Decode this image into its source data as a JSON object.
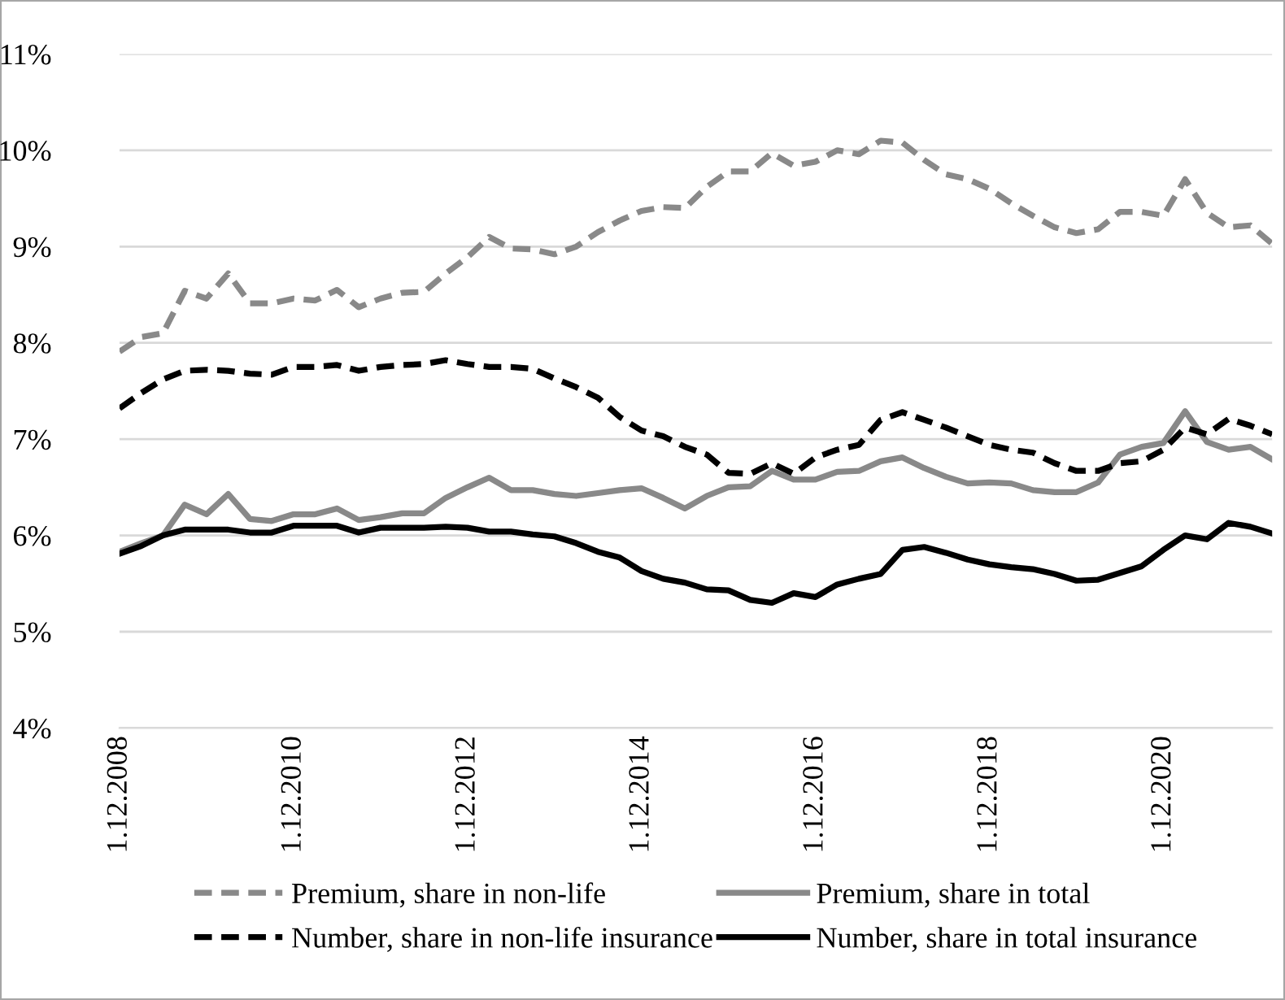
{
  "chart_data": {
    "type": "line",
    "categories": [
      "1.12.2008",
      null,
      null,
      null,
      null,
      null,
      null,
      null,
      "1.12.2010",
      null,
      null,
      null,
      null,
      null,
      null,
      null,
      "1.12.2012",
      null,
      null,
      null,
      null,
      null,
      null,
      null,
      "1.12.2014",
      null,
      null,
      null,
      null,
      null,
      null,
      null,
      "1.12.2016",
      null,
      null,
      null,
      null,
      null,
      null,
      null,
      "1.12.2018",
      null,
      null,
      null,
      null,
      null,
      null,
      null,
      "1.12.2020",
      null,
      null,
      null,
      null,
      null
    ],
    "series": [
      {
        "name": "Premium, share in non-life",
        "color": "#898989",
        "line_style": "dashed",
        "values": [
          7.91,
          8.06,
          8.1,
          8.54,
          8.46,
          8.72,
          8.41,
          8.41,
          8.46,
          8.44,
          8.55,
          8.37,
          8.46,
          8.52,
          8.53,
          8.72,
          8.89,
          9.1,
          8.98,
          8.97,
          8.92,
          9.0,
          9.15,
          9.27,
          9.37,
          9.41,
          9.4,
          9.62,
          9.78,
          9.78,
          9.97,
          9.84,
          9.88,
          10.0,
          9.96,
          10.1,
          10.08,
          9.9,
          9.75,
          9.7,
          9.6,
          9.45,
          9.32,
          9.2,
          9.14,
          9.18,
          9.36,
          9.36,
          9.32,
          9.7,
          9.35,
          9.2,
          9.22,
          9.03
        ]
      },
      {
        "name": "Premium, share in total",
        "color": "#898989",
        "line_style": "solid",
        "values": [
          5.83,
          5.92,
          6.0,
          6.32,
          6.22,
          6.43,
          6.17,
          6.15,
          6.22,
          6.22,
          6.28,
          6.16,
          6.19,
          6.23,
          6.23,
          6.39,
          6.5,
          6.6,
          6.47,
          6.47,
          6.43,
          6.41,
          6.44,
          6.47,
          6.49,
          6.39,
          6.28,
          6.41,
          6.5,
          6.51,
          6.67,
          6.58,
          6.58,
          6.66,
          6.67,
          6.77,
          6.81,
          6.7,
          6.61,
          6.54,
          6.55,
          6.54,
          6.47,
          6.45,
          6.45,
          6.55,
          6.84,
          6.92,
          6.96,
          7.29,
          6.97,
          6.89,
          6.92,
          6.79
        ]
      },
      {
        "name": "Number, share in non-life insurance",
        "color": "#000000",
        "line_style": "dashed",
        "values": [
          7.32,
          7.48,
          7.62,
          7.71,
          7.72,
          7.71,
          7.68,
          7.67,
          7.75,
          7.75,
          7.77,
          7.71,
          7.75,
          7.77,
          7.78,
          7.82,
          7.78,
          7.75,
          7.75,
          7.73,
          7.63,
          7.54,
          7.43,
          7.23,
          7.09,
          7.03,
          6.92,
          6.84,
          6.65,
          6.64,
          6.75,
          6.64,
          6.81,
          6.89,
          6.94,
          7.2,
          7.28,
          7.2,
          7.12,
          7.03,
          6.94,
          6.89,
          6.86,
          6.75,
          6.67,
          6.67,
          6.75,
          6.77,
          6.89,
          7.12,
          7.05,
          7.21,
          7.14,
          7.05
        ]
      },
      {
        "name": "Number, share in total insurance",
        "color": "#000000",
        "line_style": "solid",
        "values": [
          5.81,
          5.89,
          6.0,
          6.06,
          6.06,
          6.06,
          6.03,
          6.03,
          6.1,
          6.1,
          6.1,
          6.03,
          6.08,
          6.08,
          6.08,
          6.09,
          6.08,
          6.04,
          6.04,
          6.01,
          5.99,
          5.92,
          5.83,
          5.77,
          5.63,
          5.55,
          5.51,
          5.44,
          5.43,
          5.33,
          5.3,
          5.4,
          5.36,
          5.49,
          5.55,
          5.6,
          5.85,
          5.88,
          5.82,
          5.75,
          5.7,
          5.67,
          5.65,
          5.6,
          5.53,
          5.54,
          5.61,
          5.68,
          5.85,
          6.0,
          5.96,
          6.13,
          6.09,
          6.02
        ]
      }
    ],
    "ylim": [
      4,
      11
    ],
    "yticks": [
      {
        "value": 4,
        "label": "4%"
      },
      {
        "value": 5,
        "label": "5%"
      },
      {
        "value": 6,
        "label": "6%"
      },
      {
        "value": 7,
        "label": "7%"
      },
      {
        "value": 8,
        "label": "8%"
      },
      {
        "value": 9,
        "label": "9%"
      },
      {
        "value": 10,
        "label": "10%"
      },
      {
        "value": 11,
        "label": "11%"
      }
    ],
    "grid": "y",
    "legend": "bottom",
    "marker": "none"
  }
}
